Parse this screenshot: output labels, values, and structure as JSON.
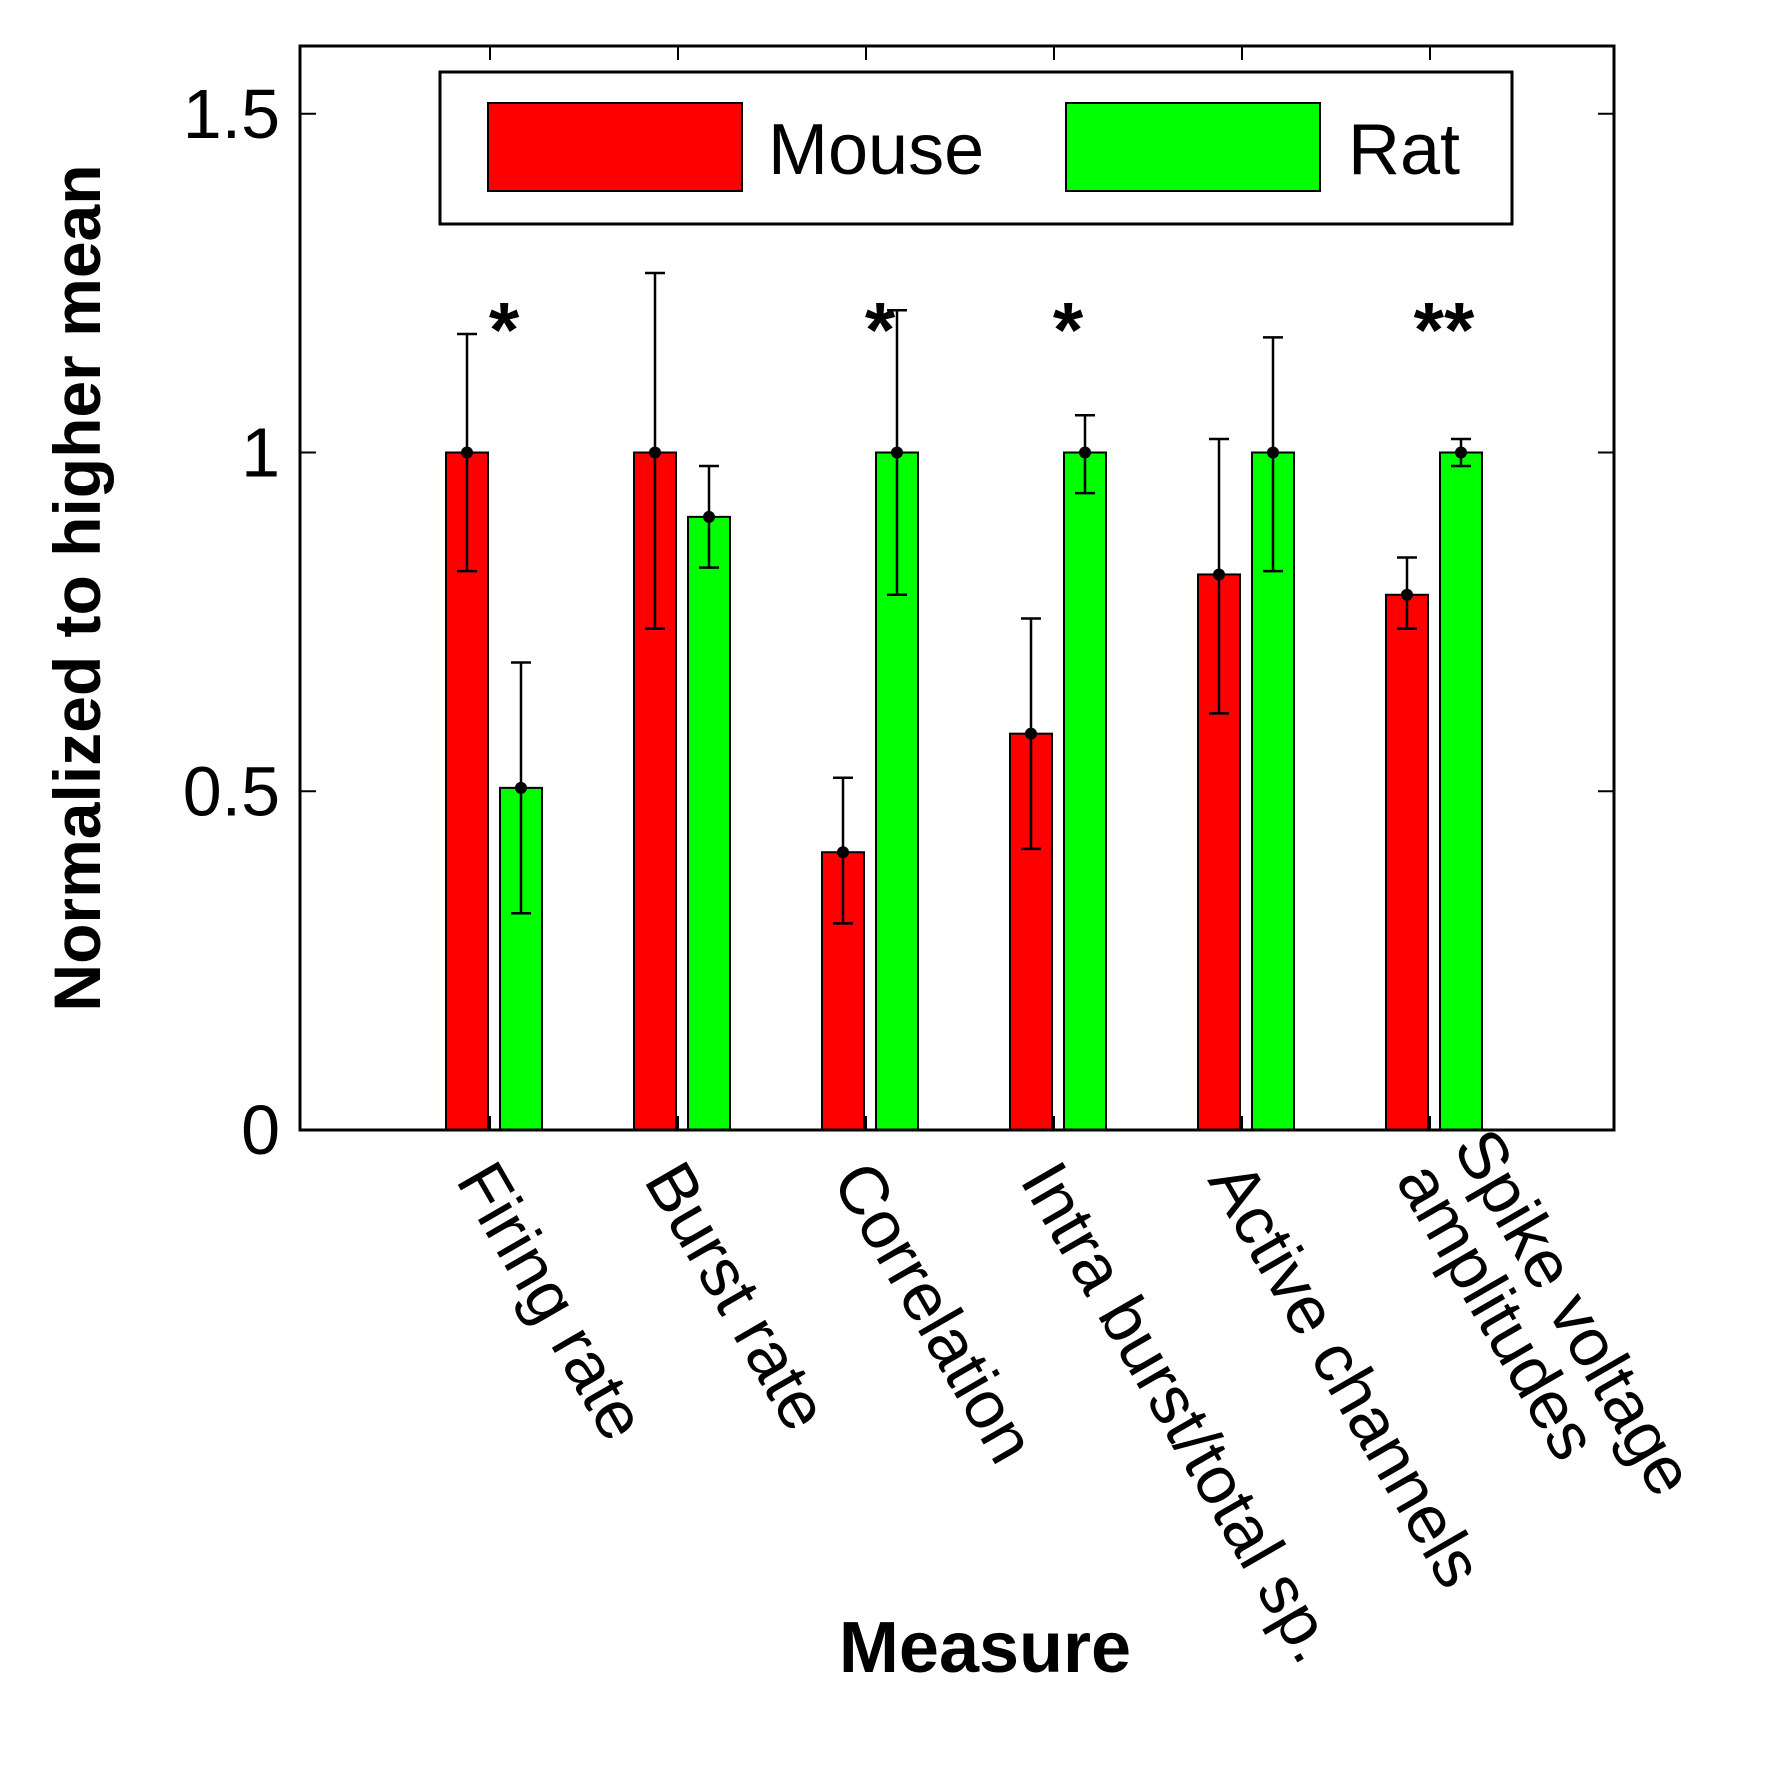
{
  "chart_data": {
    "type": "bar",
    "title": "",
    "xlabel": "Measure",
    "ylabel": "Normalized to higher mean",
    "ylim": [
      0,
      1.6
    ],
    "yticks": [
      {
        "value": 0,
        "label": "0"
      },
      {
        "value": 0.5,
        "label": "0.5"
      },
      {
        "value": 1,
        "label": "1"
      },
      {
        "value": 1.5,
        "label": "1.5"
      }
    ],
    "categories": [
      [
        "Firing rate"
      ],
      [
        "Burst rate"
      ],
      [
        "Correlation"
      ],
      [
        "Intra burst/total sp."
      ],
      [
        "Active channels"
      ],
      [
        "Spike voltage",
        "amplitudes"
      ]
    ],
    "series": [
      {
        "name": "Mouse",
        "color": "#ff0000",
        "values": [
          1.0,
          1.0,
          0.41,
          0.585,
          0.82,
          0.79
        ],
        "err_low": [
          0.825,
          0.74,
          0.305,
          0.415,
          0.615,
          0.74
        ],
        "err_high": [
          1.175,
          1.265,
          0.52,
          0.755,
          1.02,
          0.845
        ]
      },
      {
        "name": "Rat",
        "color": "#00ff00",
        "values": [
          0.505,
          0.905,
          1.0,
          1.0,
          1.0,
          1.0
        ],
        "err_low": [
          0.32,
          0.83,
          0.79,
          0.94,
          0.825,
          0.98
        ],
        "err_high": [
          0.69,
          0.98,
          1.21,
          1.055,
          1.17,
          1.02
        ]
      }
    ],
    "significance": [
      "*",
      "",
      "*",
      "*",
      "",
      "**"
    ],
    "legend_position": "top",
    "grid": false
  }
}
